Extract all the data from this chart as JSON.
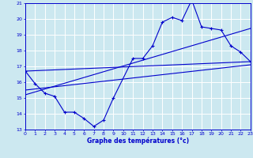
{
  "title": "Graphe des températures (°c)",
  "hours": [
    0,
    1,
    2,
    3,
    4,
    5,
    6,
    7,
    8,
    9,
    10,
    11,
    12,
    13,
    14,
    15,
    16,
    17,
    18,
    19,
    20,
    21,
    22,
    23
  ],
  "temp_actual": [
    16.7,
    15.9,
    15.3,
    15.1,
    14.1,
    14.1,
    13.7,
    13.2,
    13.6,
    15.0,
    null,
    17.5,
    17.5,
    18.3,
    19.8,
    20.1,
    19.9,
    21.2,
    19.5,
    19.4,
    19.3,
    18.3,
    17.9,
    17.3
  ],
  "trend_line1_x": [
    0,
    23
  ],
  "trend_line1_y": [
    16.7,
    17.3
  ],
  "trend_line2_x": [
    0,
    23
  ],
  "trend_line2_y": [
    15.2,
    19.4
  ],
  "trend_line3_x": [
    0,
    23
  ],
  "trend_line3_y": [
    15.5,
    17.1
  ],
  "ylim": [
    13,
    21
  ],
  "yticks": [
    13,
    14,
    15,
    16,
    17,
    18,
    19,
    20,
    21
  ],
  "xlim": [
    0,
    23
  ],
  "xticks": [
    0,
    1,
    2,
    3,
    4,
    5,
    6,
    7,
    8,
    9,
    10,
    11,
    12,
    13,
    14,
    15,
    16,
    17,
    18,
    19,
    20,
    21,
    22,
    23
  ],
  "line_color": "#0000cc",
  "bg_color": "#cce8f0",
  "grid_color": "#ffffff",
  "axis_color": "#0000cc",
  "label_color": "#0000cc"
}
